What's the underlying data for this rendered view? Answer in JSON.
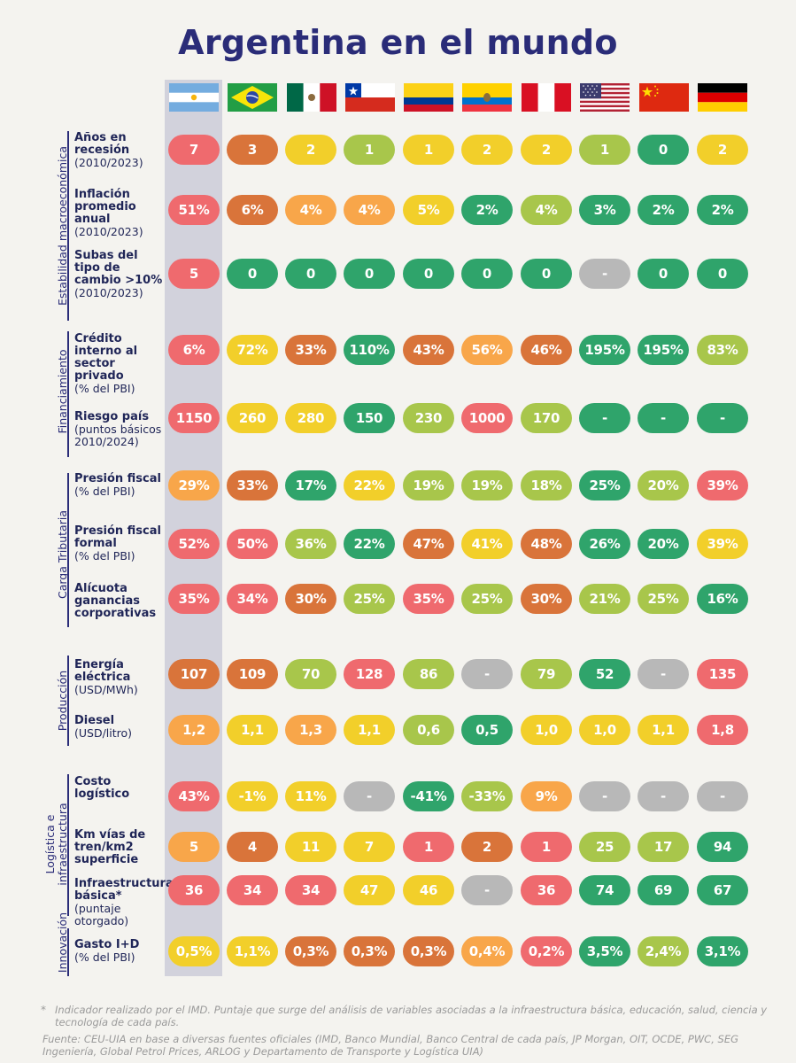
{
  "title": "Argentina en el mundo",
  "countries": [
    {
      "name": "argentina",
      "flag": "argentina-flag"
    },
    {
      "name": "brazil",
      "flag": "brazil-flag"
    },
    {
      "name": "mexico",
      "flag": "mexico-flag"
    },
    {
      "name": "chile",
      "flag": "chile-flag"
    },
    {
      "name": "colombia",
      "flag": "colombia-flag"
    },
    {
      "name": "ecuador",
      "flag": "ecuador-flag"
    },
    {
      "name": "peru",
      "flag": "peru-flag"
    },
    {
      "name": "usa",
      "flag": "usa-flag"
    },
    {
      "name": "china",
      "flag": "china-flag"
    },
    {
      "name": "germany",
      "flag": "germany-flag"
    }
  ],
  "colors": {
    "R": "#ef6a6e",
    "O": "#d9743a",
    "L": "#f8a64a",
    "Y": "#f2cf2a",
    "G": "#a8c64b",
    "D": "#2fa46b",
    "N": "#b8b8b8"
  },
  "sections": [
    {
      "label": "Estabilidad macroeconómica"
    },
    {
      "label": "Financiamiento"
    },
    {
      "label": "Carga Tributaria"
    },
    {
      "label": "Producción"
    },
    {
      "label": "Logística e infraestructura"
    },
    {
      "label": "Innovación"
    }
  ],
  "rows": [
    {
      "bold": "Años en recesión",
      "sub": "(2010/2023)",
      "values": [
        "7",
        "3",
        "2",
        "1",
        "1",
        "2",
        "2",
        "1",
        "0",
        "2"
      ],
      "colors": [
        "R",
        "O",
        "Y",
        "G",
        "Y",
        "Y",
        "Y",
        "G",
        "D",
        "Y"
      ]
    },
    {
      "bold": "Inflación promedio anual",
      "sub": "(2010/2023)",
      "values": [
        "51%",
        "6%",
        "4%",
        "4%",
        "5%",
        "2%",
        "4%",
        "3%",
        "2%",
        "2%"
      ],
      "colors": [
        "R",
        "O",
        "L",
        "L",
        "Y",
        "D",
        "G",
        "D",
        "D",
        "D"
      ]
    },
    {
      "bold": "Subas del tipo de cambio >10%",
      "sub": "(2010/2023)",
      "values": [
        "5",
        "0",
        "0",
        "0",
        "0",
        "0",
        "0",
        "-",
        "0",
        "0"
      ],
      "colors": [
        "R",
        "D",
        "D",
        "D",
        "D",
        "D",
        "D",
        "N",
        "D",
        "D"
      ]
    },
    {
      "bold": "Crédito interno al sector privado",
      "sub": "(% del PBI)",
      "values": [
        "6%",
        "72%",
        "33%",
        "110%",
        "43%",
        "56%",
        "46%",
        "195%",
        "195%",
        "83%"
      ],
      "colors": [
        "R",
        "Y",
        "O",
        "D",
        "O",
        "L",
        "O",
        "D",
        "D",
        "G"
      ]
    },
    {
      "bold": "Riesgo país",
      "sub": "(puntos básicos 2010/2024)",
      "values": [
        "1150",
        "260",
        "280",
        "150",
        "230",
        "1000",
        "170",
        "-",
        "-",
        "-"
      ],
      "colors": [
        "R",
        "Y",
        "Y",
        "D",
        "G",
        "R",
        "G",
        "D",
        "D",
        "D"
      ]
    },
    {
      "bold": "Presión fiscal",
      "sub": "(% del PBI)",
      "values": [
        "29%",
        "33%",
        "17%",
        "22%",
        "19%",
        "19%",
        "18%",
        "25%",
        "20%",
        "39%"
      ],
      "colors": [
        "L",
        "O",
        "D",
        "Y",
        "G",
        "G",
        "G",
        "D",
        "G",
        "R"
      ]
    },
    {
      "bold": "Presión fiscal formal",
      "sub": "(% del PBI)",
      "values": [
        "52%",
        "50%",
        "36%",
        "22%",
        "47%",
        "41%",
        "48%",
        "26%",
        "20%",
        "39%"
      ],
      "colors": [
        "R",
        "R",
        "G",
        "D",
        "O",
        "Y",
        "O",
        "D",
        "D",
        "Y"
      ]
    },
    {
      "bold": "Alícuota ganancias corporativas",
      "sub": "",
      "values": [
        "35%",
        "34%",
        "30%",
        "25%",
        "35%",
        "25%",
        "30%",
        "21%",
        "25%",
        "16%"
      ],
      "colors": [
        "R",
        "R",
        "O",
        "G",
        "R",
        "G",
        "O",
        "G",
        "G",
        "D"
      ]
    },
    {
      "bold": "Energía eléctrica",
      "sub": "(USD/MWh)",
      "values": [
        "107",
        "109",
        "70",
        "128",
        "86",
        "-",
        "79",
        "52",
        "-",
        "135"
      ],
      "colors": [
        "O",
        "O",
        "G",
        "R",
        "G",
        "N",
        "G",
        "D",
        "N",
        "R"
      ]
    },
    {
      "bold": "Diesel",
      "sub": "(USD/litro)",
      "values": [
        "1,2",
        "1,1",
        "1,3",
        "1,1",
        "0,6",
        "0,5",
        "1,0",
        "1,0",
        "1,1",
        "1,8"
      ],
      "colors": [
        "L",
        "Y",
        "L",
        "Y",
        "G",
        "D",
        "Y",
        "Y",
        "Y",
        "R"
      ]
    },
    {
      "bold": "Costo logístico",
      "sub": "",
      "values": [
        "43%",
        "-1%",
        "11%",
        "-",
        "-41%",
        "-33%",
        "9%",
        "-",
        "-",
        "-"
      ],
      "colors": [
        "R",
        "Y",
        "Y",
        "N",
        "D",
        "G",
        "L",
        "N",
        "N",
        "N"
      ]
    },
    {
      "bold": "Km vías de tren/km2 superficie",
      "sub": "",
      "values": [
        "5",
        "4",
        "11",
        "7",
        "1",
        "2",
        "1",
        "25",
        "17",
        "94"
      ],
      "colors": [
        "L",
        "O",
        "Y",
        "Y",
        "R",
        "O",
        "R",
        "G",
        "G",
        "D"
      ]
    },
    {
      "bold": "Infraestructura básica*",
      "sub": "(puntaje otorgado)",
      "values": [
        "36",
        "34",
        "34",
        "47",
        "46",
        "-",
        "36",
        "74",
        "69",
        "67"
      ],
      "colors": [
        "R",
        "R",
        "R",
        "Y",
        "Y",
        "N",
        "R",
        "D",
        "D",
        "D"
      ]
    },
    {
      "bold": "Gasto I+D",
      "sub": "(% del PBI)",
      "values": [
        "0,5%",
        "1,1%",
        "0,3%",
        "0,3%",
        "0,3%",
        "0,4%",
        "0,2%",
        "3,5%",
        "2,4%",
        "3,1%"
      ],
      "colors": [
        "Y",
        "Y",
        "O",
        "O",
        "O",
        "L",
        "R",
        "D",
        "G",
        "D"
      ]
    }
  ],
  "footnote_star": "*",
  "footnote": "Indicador realizado por el IMD. Puntaje que surge del análisis de variables asociadas a la infraestructura básica, educación, salud, ciencia y tecnología de cada país.",
  "source": "Fuente: CEU-UIA en base a diversas fuentes oficiales (IMD, Banco Mundial, Banco Central de cada país, JP Morgan, OIT, OCDE, PWC, SEG Ingeniería, Global Petrol Prices, ARLOG y Departamento de Transporte y Logística UIA)"
}
